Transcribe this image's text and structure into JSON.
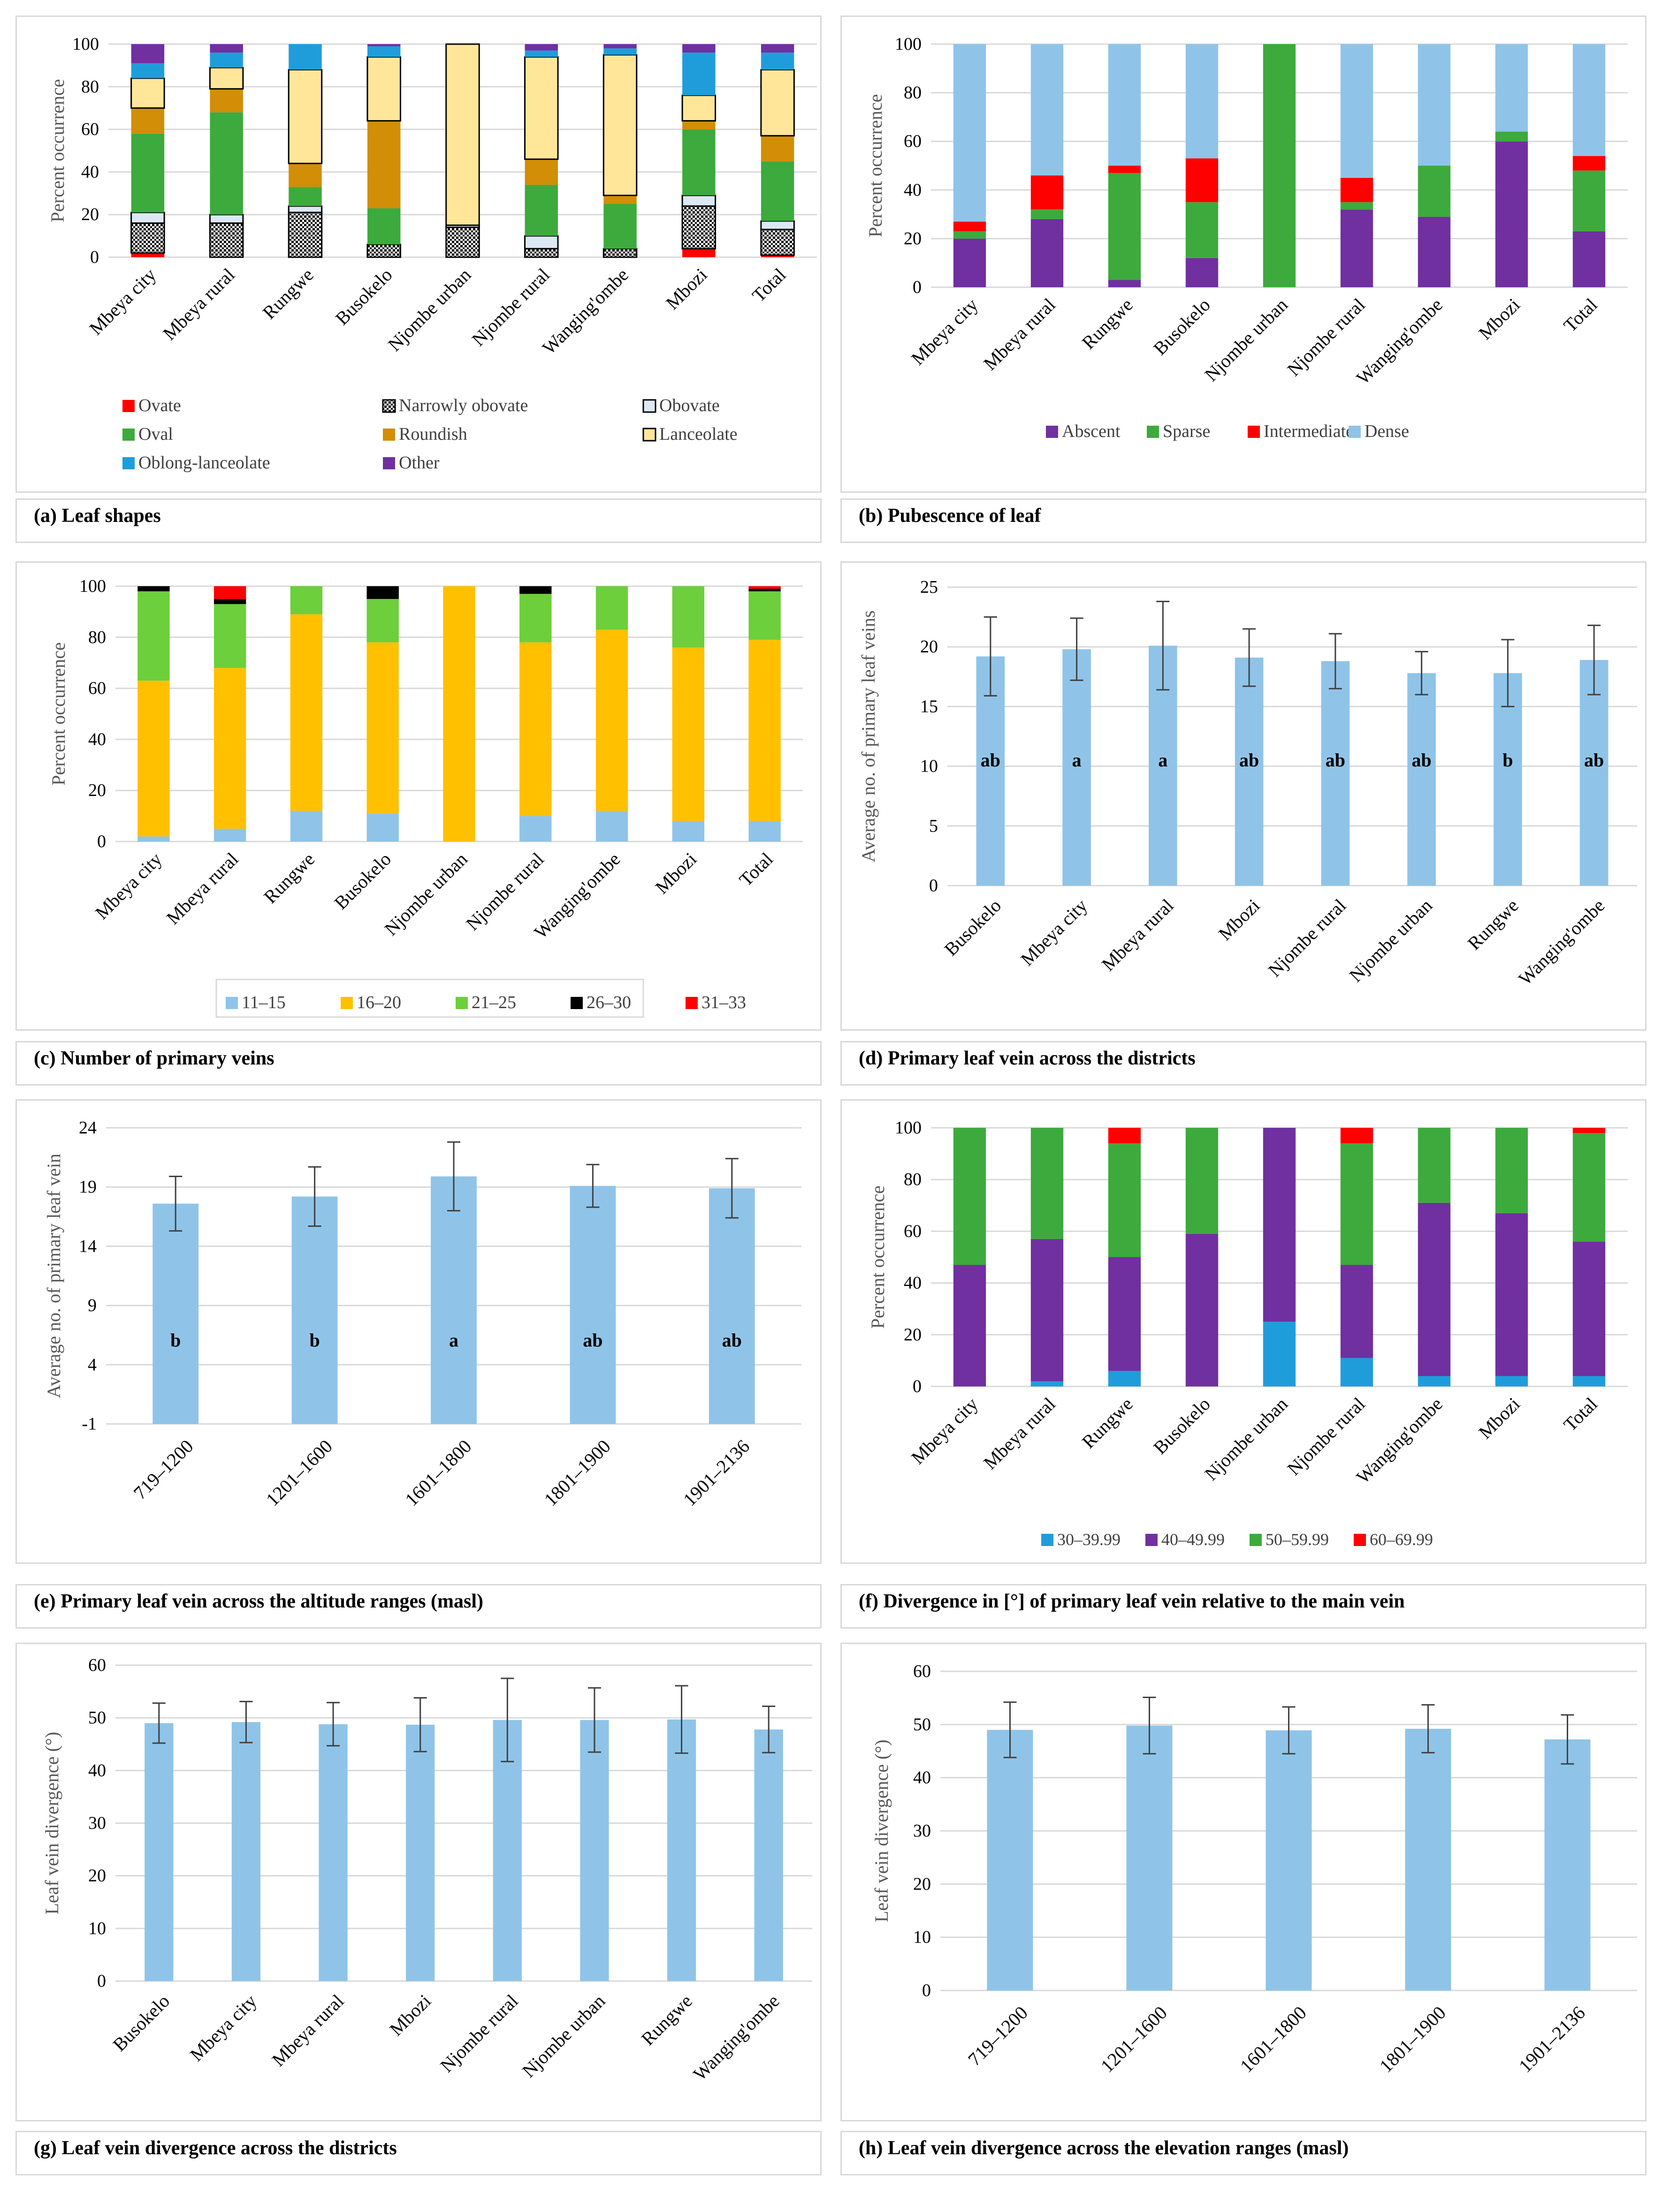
{
  "panel_a": {
    "caption": "(a) Leaf shapes",
    "chart_data": {
      "type": "bar",
      "stacked": true,
      "ylabel": "Percent occurrence",
      "ylim": [
        0,
        100
      ],
      "yticks": [
        0,
        20,
        40,
        60,
        80,
        100
      ],
      "categories": [
        "Mbeya city",
        "Mbeya rural",
        "Rungwe",
        "Busokelo",
        "Njombe urban",
        "Njombe rural",
        "Wanging'ombe",
        "Mbozi",
        "Total"
      ],
      "series": [
        {
          "name": "Ovate",
          "color": "#ff0000",
          "pattern": "",
          "values": [
            2,
            0,
            0,
            0,
            0,
            0,
            0,
            4,
            1
          ]
        },
        {
          "name": "Narrowly obovate",
          "color": "#1a1a1a",
          "pattern": "dots",
          "values": [
            14,
            16,
            21,
            6,
            14,
            4,
            4,
            20,
            12
          ]
        },
        {
          "name": "Obovate",
          "color": "#dce9f5",
          "pattern": "outline",
          "values": [
            5,
            4,
            3,
            0,
            1,
            6,
            0,
            5,
            4
          ]
        },
        {
          "name": "Oval",
          "color": "#3daa3d",
          "pattern": "",
          "values": [
            37,
            48,
            9,
            17,
            0,
            24,
            21,
            31,
            28
          ]
        },
        {
          "name": "Roundish",
          "color": "#d18e06",
          "pattern": "",
          "values": [
            12,
            11,
            11,
            41,
            0,
            12,
            4,
            4,
            12
          ]
        },
        {
          "name": "Lanceolate",
          "color": "#ffe699",
          "pattern": "outline",
          "values": [
            14,
            10,
            44,
            30,
            85,
            48,
            66,
            12,
            31
          ]
        },
        {
          "name": "Oblong-lanceolate",
          "color": "#1f9ddb",
          "pattern": "",
          "values": [
            7,
            7,
            12,
            5,
            0,
            3,
            3,
            20,
            8
          ]
        },
        {
          "name": "Other",
          "color": "#7030a0",
          "pattern": "",
          "values": [
            9,
            4,
            0,
            1,
            0,
            3,
            2,
            4,
            4
          ]
        }
      ]
    }
  },
  "panel_b": {
    "caption": "(b) Pubescence of leaf",
    "chart_data": {
      "type": "bar",
      "stacked": true,
      "ylabel": "Percent occurrence",
      "ylim": [
        0,
        100
      ],
      "yticks": [
        0,
        20,
        40,
        60,
        80,
        100
      ],
      "categories": [
        "Mbeya city",
        "Mbeya rural",
        "Rungwe",
        "Busokelo",
        "Njombe urban",
        "Njombe rural",
        "Wanging'ombe",
        "Mbozi",
        "Total"
      ],
      "series": [
        {
          "name": "Abscent",
          "color": "#7030a0",
          "values": [
            20,
            28,
            3,
            12,
            0,
            32,
            29,
            60,
            23
          ]
        },
        {
          "name": "Sparse",
          "color": "#3daa3d",
          "values": [
            3,
            4,
            44,
            23,
            100,
            3,
            21,
            4,
            25
          ]
        },
        {
          "name": "Intermediate",
          "color": "#ff0000",
          "values": [
            4,
            14,
            3,
            18,
            0,
            10,
            0,
            0,
            6
          ]
        },
        {
          "name": "Dense",
          "color": "#8fc4e8",
          "values": [
            73,
            54,
            50,
            47,
            0,
            55,
            50,
            36,
            46
          ]
        }
      ]
    }
  },
  "panel_c": {
    "caption": "(c) Number of primary veins",
    "chart_data": {
      "type": "bar",
      "stacked": true,
      "ylabel": "Percent occurrence",
      "ylim": [
        0,
        100
      ],
      "yticks": [
        0,
        20,
        40,
        60,
        80,
        100
      ],
      "categories": [
        "Mbeya city",
        "Mbeya rural",
        "Rungwe",
        "Busokelo",
        "Njombe urban",
        "Njombe rural",
        "Wanging'ombe",
        "Mbozi",
        "Total"
      ],
      "series": [
        {
          "name": "11–15",
          "color": "#8fc4e8",
          "values": [
            2,
            5,
            12,
            11,
            0,
            10,
            12,
            8,
            8
          ]
        },
        {
          "name": "16–20",
          "color": "#ffc000",
          "values": [
            61,
            63,
            77,
            67,
            100,
            68,
            71,
            68,
            71
          ]
        },
        {
          "name": "21–25",
          "color": "#6ccf3b",
          "values": [
            35,
            25,
            11,
            17,
            0,
            19,
            17,
            24,
            19
          ]
        },
        {
          "name": "26–30",
          "color": "#000000",
          "values": [
            2,
            2,
            0,
            5,
            0,
            3,
            0,
            0,
            1
          ]
        },
        {
          "name": "31–33",
          "color": "#ff0000",
          "values": [
            0,
            5,
            0,
            0,
            0,
            0,
            0,
            0,
            1
          ]
        }
      ]
    }
  },
  "panel_d": {
    "caption": "(d) Primary leaf vein across the districts",
    "chart_data": {
      "type": "bar",
      "ylabel": "Average no. of primary leaf veins",
      "ylim": [
        0,
        25
      ],
      "yticks": [
        0,
        5,
        10,
        15,
        20,
        25
      ],
      "color": "#8fc4e8",
      "categories": [
        "Busokelo",
        "Mbeya city",
        "Mbeya rural",
        "Mbozi",
        "Njombe rural",
        "Njombe urban",
        "Rungwe",
        "Wanging'ombe"
      ],
      "values": [
        19.2,
        19.8,
        20.1,
        19.1,
        18.8,
        17.8,
        17.8,
        18.9
      ],
      "errors": [
        3.3,
        2.6,
        3.7,
        2.4,
        2.3,
        1.8,
        2.8,
        2.9
      ],
      "letters": [
        "ab",
        "a",
        "a",
        "ab",
        "ab",
        "ab",
        "b",
        "ab"
      ]
    }
  },
  "panel_e": {
    "caption": "(e) Primary leaf vein across the altitude ranges (masl)",
    "chart_data": {
      "type": "bar",
      "ylabel": "Average no. of primary leaf vein",
      "ylim": [
        -1,
        24
      ],
      "yticks": [
        -1,
        4,
        9,
        14,
        19,
        24
      ],
      "color": "#8fc4e8",
      "categories": [
        "719–1200",
        "1201–1600",
        "1601–1800",
        "1801–1900",
        "1901–2136"
      ],
      "values": [
        17.6,
        18.2,
        19.9,
        19.1,
        18.9
      ],
      "errors": [
        2.3,
        2.5,
        2.9,
        1.8,
        2.5
      ],
      "letters": [
        "b",
        "b",
        "a",
        "ab",
        "ab"
      ]
    }
  },
  "panel_f": {
    "caption": "(f) Divergence in [°] of primary leaf vein relative to the main vein",
    "chart_data": {
      "type": "bar",
      "stacked": true,
      "ylabel": "Percent occurrence",
      "ylim": [
        0,
        100
      ],
      "yticks": [
        0,
        20,
        40,
        60,
        80,
        100
      ],
      "categories": [
        "Mbeya city",
        "Mbeya rural",
        "Rungwe",
        "Busokelo",
        "Njombe urban",
        "Njombe rural",
        "Wanging'ombe",
        "Mbozi",
        "Total"
      ],
      "series": [
        {
          "name": "30–39.99",
          "color": "#1f9ddb",
          "values": [
            0,
            2,
            6,
            0,
            25,
            11,
            4,
            4,
            4
          ]
        },
        {
          "name": "40–49.99",
          "color": "#7030a0",
          "values": [
            47,
            55,
            44,
            59,
            75,
            36,
            67,
            63,
            52
          ]
        },
        {
          "name": "50–59.99",
          "color": "#3daa3d",
          "values": [
            53,
            43,
            44,
            41,
            0,
            47,
            29,
            33,
            42
          ]
        },
        {
          "name": "60–69.99",
          "color": "#ff0000",
          "values": [
            0,
            0,
            6,
            0,
            0,
            6,
            0,
            0,
            2
          ]
        }
      ]
    }
  },
  "panel_g": {
    "caption": "(g) Leaf vein divergence across the districts",
    "chart_data": {
      "type": "bar",
      "ylabel": "Leaf vein divergence (°)",
      "ylim": [
        0,
        60
      ],
      "yticks": [
        0,
        10,
        20,
        30,
        40,
        50,
        60
      ],
      "color": "#8fc4e8",
      "categories": [
        "Busokelo",
        "Mbeya city",
        "Mbeya rural",
        "Mbozi",
        "Njombe rural",
        "Njombe urban",
        "Rungwe",
        "Wanging'ombe"
      ],
      "values": [
        49,
        49.2,
        48.8,
        48.7,
        49.6,
        49.6,
        49.7,
        47.8
      ],
      "errors": [
        3.8,
        3.9,
        4.1,
        5.1,
        7.9,
        6.1,
        6.4,
        4.4
      ]
    }
  },
  "panel_h": {
    "caption": "(h) Leaf vein divergence across the elevation ranges (masl)",
    "chart_data": {
      "type": "bar",
      "ylabel": "Leaf vein divergence (°)",
      "ylim": [
        0,
        60
      ],
      "yticks": [
        0,
        10,
        20,
        30,
        40,
        50,
        60
      ],
      "color": "#8fc4e8",
      "categories": [
        "719–1200",
        "1201–1600",
        "1601–1800",
        "1801–1900",
        "1901–2136"
      ],
      "values": [
        49,
        49.8,
        48.9,
        49.2,
        47.2
      ],
      "errors": [
        5.2,
        5.3,
        4.4,
        4.5,
        4.6
      ]
    }
  }
}
